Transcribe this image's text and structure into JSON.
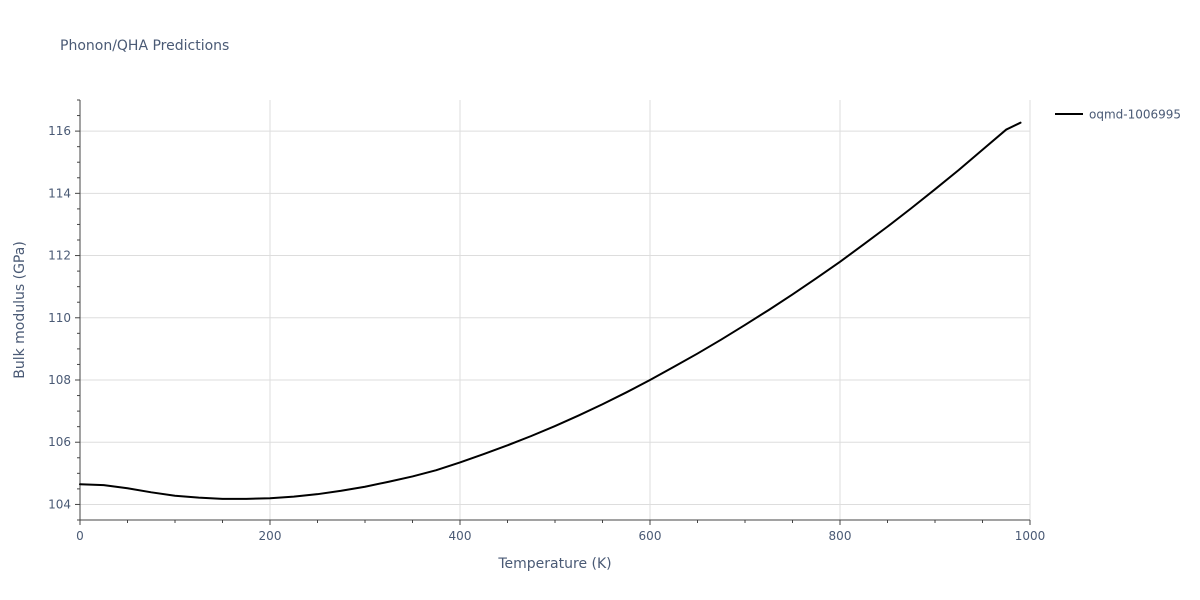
{
  "chart_data": {
    "type": "line",
    "title": "Phonon/QHA Predictions",
    "xlabel": "Temperature (K)",
    "ylabel": "Bulk modulus (GPa)",
    "xlim": [
      0,
      1000
    ],
    "ylim": [
      103.5,
      117.0
    ],
    "x_ticks": [
      0,
      200,
      400,
      600,
      800,
      1000
    ],
    "x_tick_labels": [
      "0",
      "200",
      "400",
      "600",
      "800",
      "1000"
    ],
    "x_minor_step": 50,
    "y_ticks": [
      104,
      106,
      108,
      110,
      112,
      114,
      116
    ],
    "y_tick_labels": [
      "104",
      "106",
      "108",
      "110",
      "112",
      "114",
      "116"
    ],
    "y_minor_step": 0.5,
    "grid": true,
    "legend_position": "top-right outside",
    "series": [
      {
        "name": "oqmd-1006995",
        "color": "#000000",
        "x": [
          0,
          25,
          50,
          75,
          100,
          125,
          150,
          175,
          200,
          225,
          250,
          275,
          300,
          325,
          350,
          375,
          400,
          425,
          450,
          475,
          500,
          525,
          550,
          575,
          600,
          625,
          650,
          675,
          700,
          725,
          750,
          775,
          800,
          825,
          850,
          875,
          900,
          925,
          950,
          975,
          990
        ],
        "y": [
          104.65,
          104.62,
          104.52,
          104.39,
          104.28,
          104.22,
          104.18,
          104.18,
          104.2,
          104.25,
          104.33,
          104.44,
          104.57,
          104.73,
          104.9,
          105.1,
          105.35,
          105.62,
          105.9,
          106.2,
          106.52,
          106.86,
          107.22,
          107.6,
          108.0,
          108.42,
          108.85,
          109.3,
          109.77,
          110.25,
          110.75,
          111.27,
          111.8,
          112.36,
          112.93,
          113.52,
          114.13,
          114.75,
          115.4,
          116.05,
          116.27
        ]
      }
    ]
  }
}
